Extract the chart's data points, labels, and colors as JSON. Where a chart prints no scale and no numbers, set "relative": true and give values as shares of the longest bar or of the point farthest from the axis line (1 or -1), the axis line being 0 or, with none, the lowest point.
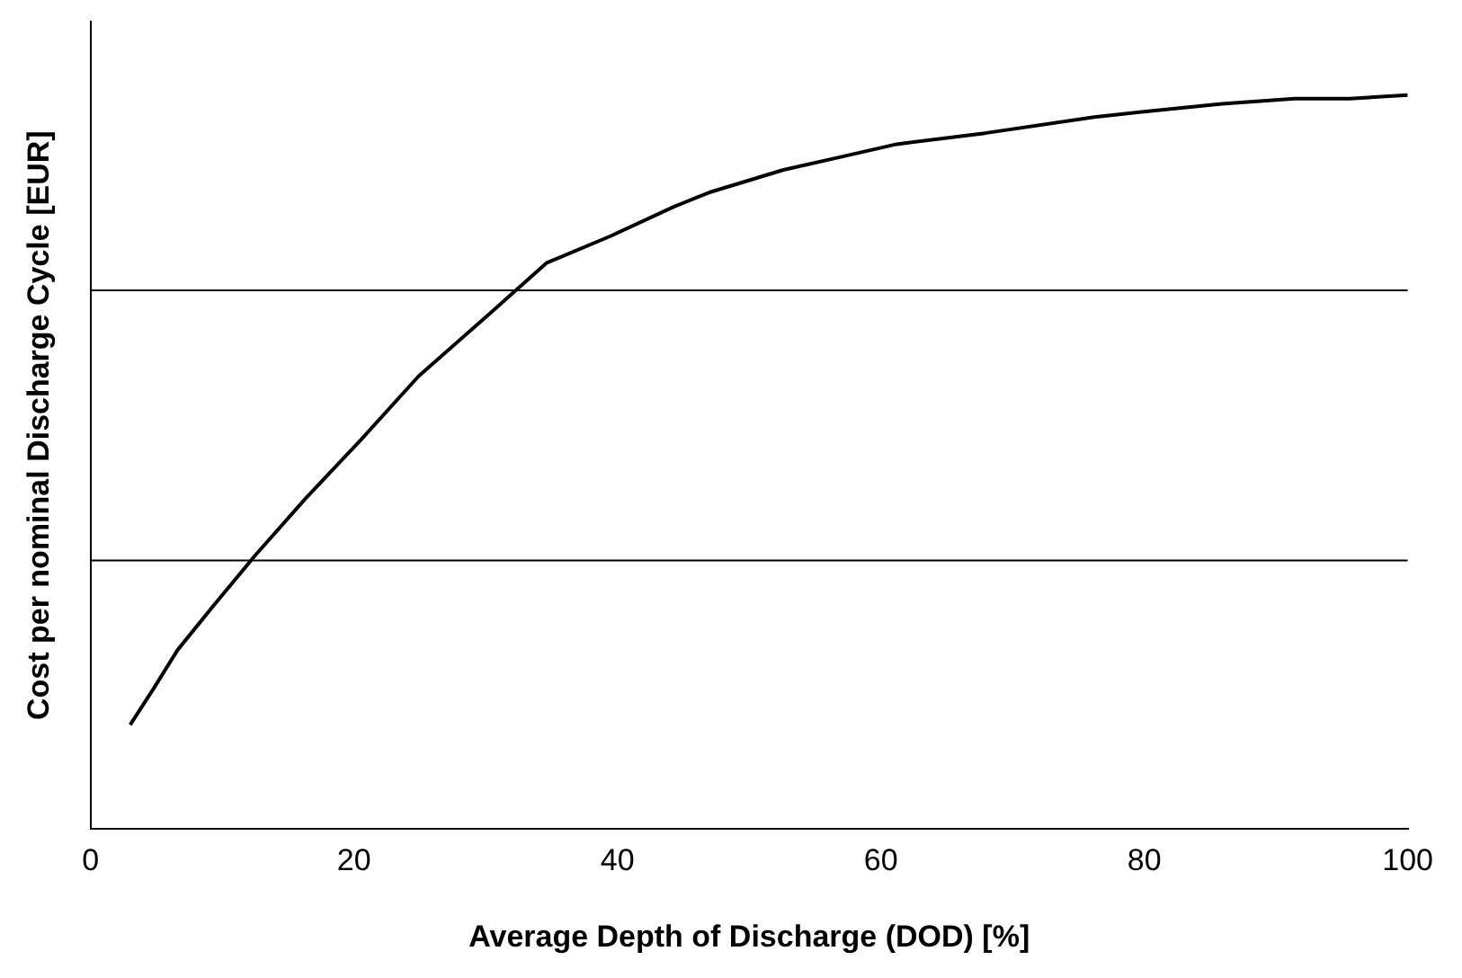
{
  "chart_data": {
    "type": "line",
    "xlabel": "Average Depth of Discharge (DOD) [%]",
    "ylabel": "Cost per nominal Discharge Cycle [EUR]",
    "relative": true,
    "ref_lines": [
      {
        "axis": "y",
        "value": 0.366,
        "color": "#000000"
      },
      {
        "axis": "y",
        "value": 0.734,
        "color": "#000000"
      }
    ],
    "legend": false,
    "marker": "none",
    "line_style": "solid",
    "xlim": [
      0,
      100
    ],
    "xticks": [
      0,
      20,
      40,
      60,
      80,
      100
    ],
    "series": [
      {
        "color": "#000000",
        "x": [
          3.0,
          4.8,
          6.6,
          9.4,
          12.5,
          16.3,
          20.5,
          24.9,
          30.1,
          34.6,
          39.5,
          44.3,
          47.1,
          52.6,
          56.8,
          61.2,
          67.9,
          76.2,
          80.3,
          85.9,
          91.4,
          95.6,
          100
        ],
        "values": [
          0.142,
          0.192,
          0.244,
          0.306,
          0.373,
          0.45,
          0.53,
          0.617,
          0.699,
          0.771,
          0.808,
          0.848,
          0.868,
          0.898,
          0.915,
          0.933,
          0.948,
          0.97,
          0.978,
          0.988,
          0.995,
          0.995,
          1
        ]
      }
    ]
  }
}
